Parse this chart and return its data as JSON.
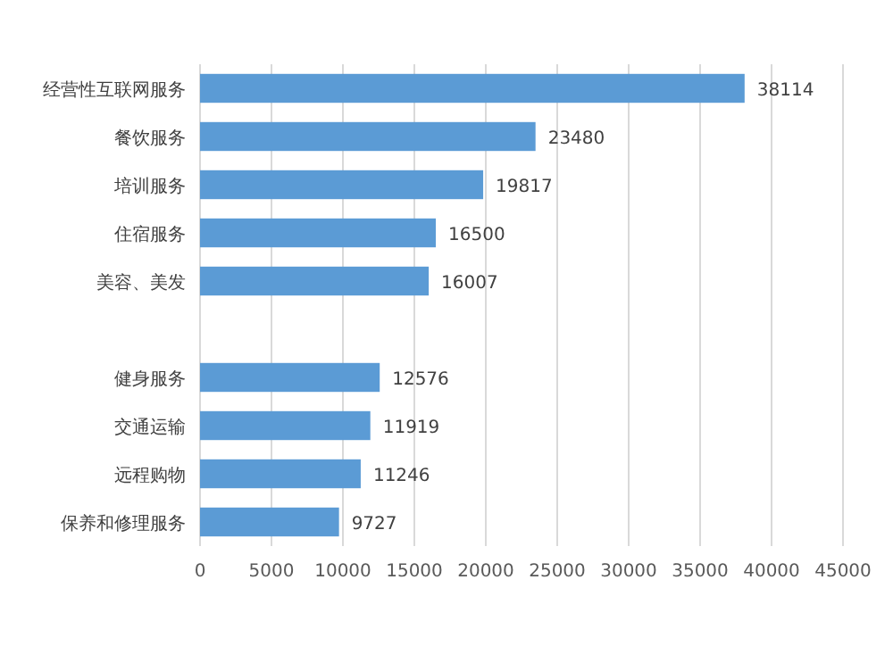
{
  "chart_data": {
    "type": "bar",
    "orientation": "horizontal",
    "categories": [
      "经营性互联网服务",
      "餐饮服务",
      "培训服务",
      "住宿服务",
      "美容、美发",
      null,
      "健身服务",
      "交通运输",
      "远程购物",
      "保养和修理服务"
    ],
    "values": [
      38114,
      23480,
      19817,
      16500,
      16007,
      null,
      12576,
      11919,
      11246,
      9727
    ],
    "color": "#5b9bd5",
    "xlim": [
      0,
      45000
    ],
    "xticks": [
      0,
      5000,
      10000,
      15000,
      20000,
      25000,
      30000,
      35000,
      40000,
      45000
    ],
    "grid": "x",
    "data_labels": true
  }
}
